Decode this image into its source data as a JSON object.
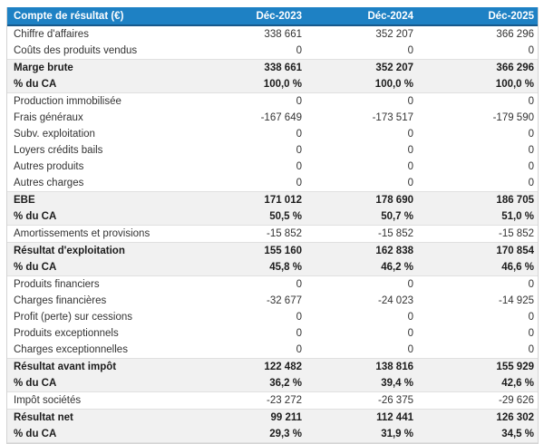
{
  "table": {
    "title": "Compte de résultat (€)",
    "columns": [
      "Déc-2023",
      "Déc-2024",
      "Déc-2025"
    ],
    "colors": {
      "header_bg": "#1e81c4",
      "header_border_bottom": "#17598c",
      "header_text": "#ffffff",
      "section_row_bg": "#f1f1f1",
      "row_bg": "#ffffff",
      "outer_border": "#d4d4d4",
      "section_border": "#e0e0e0",
      "text": "#333333",
      "bold_text": "#1c1c1c"
    },
    "rows": [
      {
        "label": "Chiffre d'affaires",
        "style": "normal",
        "values": [
          "338 661",
          "352 207",
          "366 296"
        ]
      },
      {
        "label": "Coûts des produits vendus",
        "style": "normal",
        "values": [
          "0",
          "0",
          "0"
        ]
      },
      {
        "label": "Marge brute",
        "style": "total",
        "values": [
          "338 661",
          "352 207",
          "366 296"
        ]
      },
      {
        "label": "% du CA",
        "style": "pct",
        "values": [
          "100,0 %",
          "100,0 %",
          "100,0 %"
        ]
      },
      {
        "label": "Production immobilisée",
        "style": "normal",
        "values": [
          "0",
          "0",
          "0"
        ]
      },
      {
        "label": "Frais généraux",
        "style": "normal",
        "values": [
          "-167 649",
          "-173 517",
          "-179 590"
        ]
      },
      {
        "label": "Subv. exploitation",
        "style": "normal",
        "values": [
          "0",
          "0",
          "0"
        ]
      },
      {
        "label": "Loyers crédits bails",
        "style": "normal",
        "values": [
          "0",
          "0",
          "0"
        ]
      },
      {
        "label": "Autres produits",
        "style": "normal",
        "values": [
          "0",
          "0",
          "0"
        ]
      },
      {
        "label": "Autres charges",
        "style": "normal",
        "values": [
          "0",
          "0",
          "0"
        ]
      },
      {
        "label": "EBE",
        "style": "total",
        "values": [
          "171 012",
          "178 690",
          "186 705"
        ]
      },
      {
        "label": "% du CA",
        "style": "pct",
        "values": [
          "50,5 %",
          "50,7 %",
          "51,0 %"
        ]
      },
      {
        "label": "Amortissements et provisions",
        "style": "normal",
        "values": [
          "-15 852",
          "-15 852",
          "-15 852"
        ]
      },
      {
        "label": "Résultat d'exploitation",
        "style": "total",
        "values": [
          "155 160",
          "162 838",
          "170 854"
        ]
      },
      {
        "label": "% du CA",
        "style": "pct",
        "values": [
          "45,8 %",
          "46,2 %",
          "46,6 %"
        ]
      },
      {
        "label": "Produits financiers",
        "style": "normal",
        "values": [
          "0",
          "0",
          "0"
        ]
      },
      {
        "label": "Charges financières",
        "style": "normal",
        "values": [
          "-32 677",
          "-24 023",
          "-14 925"
        ]
      },
      {
        "label": "Profit (perte) sur cessions",
        "style": "normal",
        "values": [
          "0",
          "0",
          "0"
        ]
      },
      {
        "label": "Produits exceptionnels",
        "style": "normal",
        "values": [
          "0",
          "0",
          "0"
        ]
      },
      {
        "label": "Charges exceptionnelles",
        "style": "normal",
        "values": [
          "0",
          "0",
          "0"
        ]
      },
      {
        "label": "Résultat avant impôt",
        "style": "total",
        "values": [
          "122 482",
          "138 816",
          "155 929"
        ]
      },
      {
        "label": "% du CA",
        "style": "pct",
        "values": [
          "36,2 %",
          "39,4 %",
          "42,6 %"
        ]
      },
      {
        "label": "Impôt sociétés",
        "style": "normal",
        "values": [
          "-23 272",
          "-26 375",
          "-29 626"
        ]
      },
      {
        "label": "Résultat net",
        "style": "total",
        "values": [
          "99 211",
          "112 441",
          "126 302"
        ]
      },
      {
        "label": "% du CA",
        "style": "pct",
        "values": [
          "29,3 %",
          "31,9 %",
          "34,5 %"
        ]
      }
    ]
  },
  "chart_data": {
    "type": "table",
    "title": "Compte de résultat (€)",
    "categories": [
      "Déc-2023",
      "Déc-2024",
      "Déc-2025"
    ],
    "rows": [
      {
        "label": "Chiffre d'affaires",
        "values": [
          338661,
          352207,
          366296
        ]
      },
      {
        "label": "Coûts des produits vendus",
        "values": [
          0,
          0,
          0
        ]
      },
      {
        "label": "Marge brute",
        "values": [
          338661,
          352207,
          366296
        ]
      },
      {
        "label": "% du CA",
        "values": [
          100.0,
          100.0,
          100.0
        ],
        "unit": "%"
      },
      {
        "label": "Production immobilisée",
        "values": [
          0,
          0,
          0
        ]
      },
      {
        "label": "Frais généraux",
        "values": [
          -167649,
          -173517,
          -179590
        ]
      },
      {
        "label": "Subv. exploitation",
        "values": [
          0,
          0,
          0
        ]
      },
      {
        "label": "Loyers crédits bails",
        "values": [
          0,
          0,
          0
        ]
      },
      {
        "label": "Autres produits",
        "values": [
          0,
          0,
          0
        ]
      },
      {
        "label": "Autres charges",
        "values": [
          0,
          0,
          0
        ]
      },
      {
        "label": "EBE",
        "values": [
          171012,
          178690,
          186705
        ]
      },
      {
        "label": "% du CA",
        "values": [
          50.5,
          50.7,
          51.0
        ],
        "unit": "%"
      },
      {
        "label": "Amortissements et provisions",
        "values": [
          -15852,
          -15852,
          -15852
        ]
      },
      {
        "label": "Résultat d'exploitation",
        "values": [
          155160,
          162838,
          170854
        ]
      },
      {
        "label": "% du CA",
        "values": [
          45.8,
          46.2,
          46.6
        ],
        "unit": "%"
      },
      {
        "label": "Produits financiers",
        "values": [
          0,
          0,
          0
        ]
      },
      {
        "label": "Charges financières",
        "values": [
          -32677,
          -24023,
          -14925
        ]
      },
      {
        "label": "Profit (perte) sur cessions",
        "values": [
          0,
          0,
          0
        ]
      },
      {
        "label": "Produits exceptionnels",
        "values": [
          0,
          0,
          0
        ]
      },
      {
        "label": "Charges exceptionnelles",
        "values": [
          0,
          0,
          0
        ]
      },
      {
        "label": "Résultat avant impôt",
        "values": [
          122482,
          138816,
          155929
        ]
      },
      {
        "label": "% du CA",
        "values": [
          36.2,
          39.4,
          42.6
        ],
        "unit": "%"
      },
      {
        "label": "Impôt sociétés",
        "values": [
          -23272,
          -26375,
          -29626
        ]
      },
      {
        "label": "Résultat net",
        "values": [
          99211,
          112441,
          126302
        ]
      },
      {
        "label": "% du CA",
        "values": [
          29.3,
          31.9,
          34.5
        ],
        "unit": "%"
      }
    ]
  }
}
